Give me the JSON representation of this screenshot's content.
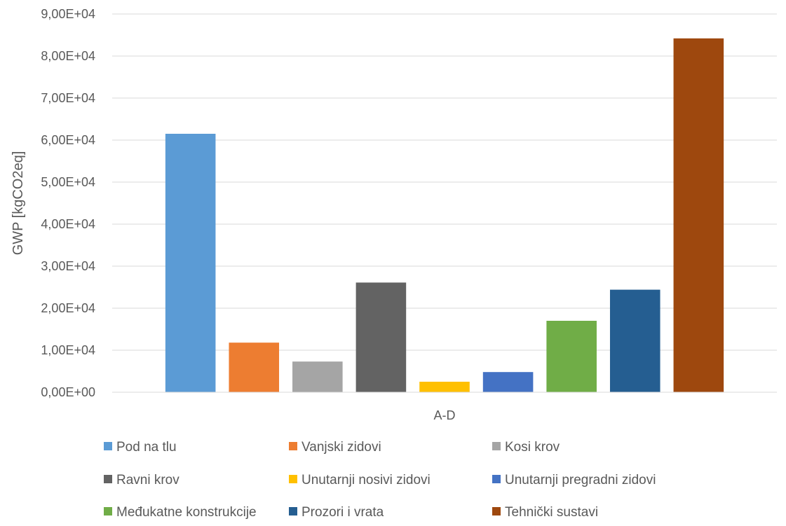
{
  "chart_data": {
    "type": "bar",
    "title": "",
    "xlabel": "A-D",
    "ylabel": "GWP [kgCO2eq]",
    "categories": [
      "A-D"
    ],
    "ylim": [
      0,
      90000
    ],
    "ytick_values": [
      0,
      10000,
      20000,
      30000,
      40000,
      50000,
      60000,
      70000,
      80000,
      90000
    ],
    "ytick_labels": [
      "0,00E+00",
      "1,00E+04",
      "2,00E+04",
      "3,00E+04",
      "4,00E+04",
      "5,00E+04",
      "6,00E+04",
      "7,00E+04",
      "8,00E+04",
      "9,00E+04"
    ],
    "grid": true,
    "legend_position": "bottom",
    "series": [
      {
        "name": "Pod na tlu",
        "values": [
          61500
        ],
        "color": "#5B9BD5"
      },
      {
        "name": "Vanjski zidovi",
        "values": [
          11800
        ],
        "color": "#ED7D31"
      },
      {
        "name": "Kosi krov",
        "values": [
          7300
        ],
        "color": "#A5A5A5"
      },
      {
        "name": "Ravni krov",
        "values": [
          26100
        ],
        "color": "#636363"
      },
      {
        "name": "Unutarnji nosivi zidovi",
        "values": [
          2500
        ],
        "color": "#FFC000"
      },
      {
        "name": "Unutarnji pregradni zidovi",
        "values": [
          4800
        ],
        "color": "#4472C4"
      },
      {
        "name": "Međukatne konstrukcije",
        "values": [
          17000
        ],
        "color": "#70AD47"
      },
      {
        "name": "Prozori i vrata",
        "values": [
          24400
        ],
        "color": "#255E91"
      },
      {
        "name": "Tehnički sustavi",
        "values": [
          84200
        ],
        "color": "#9E480E"
      }
    ]
  }
}
